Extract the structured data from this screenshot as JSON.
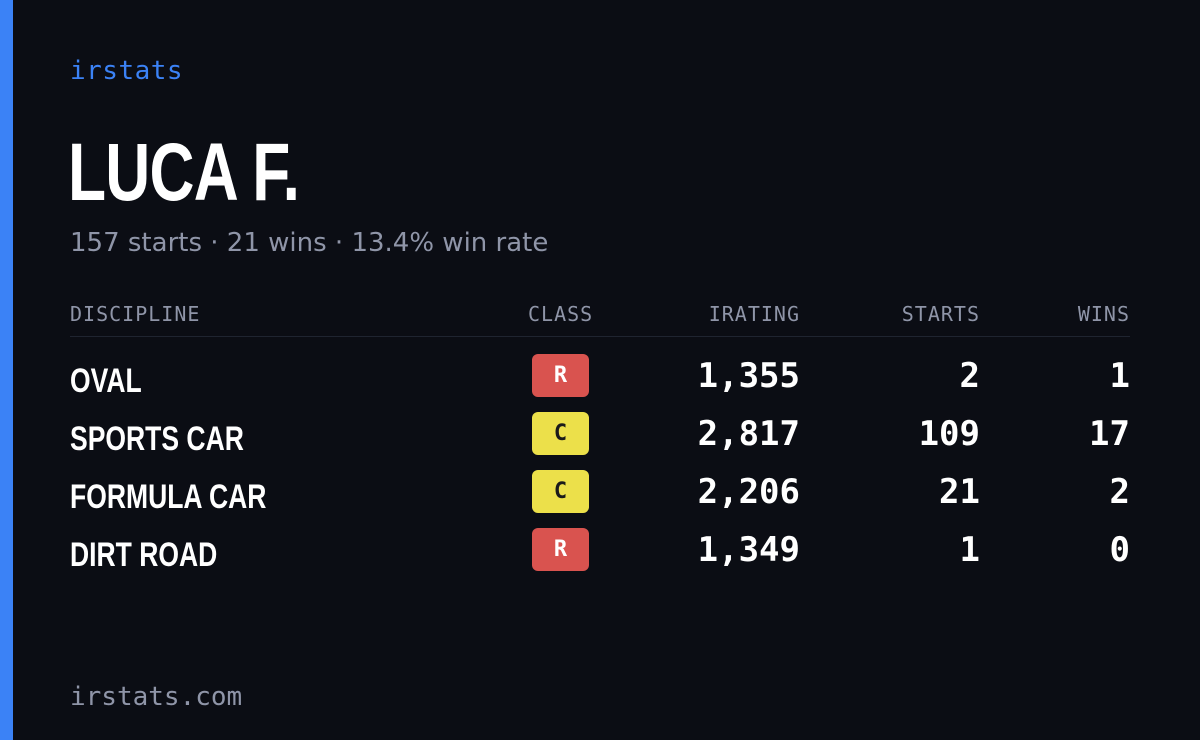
{
  "brand": "irstats",
  "driver": {
    "name": "LUCA F.",
    "summary": "157 starts · 21 wins · 13.4% win rate"
  },
  "table": {
    "headers": {
      "discipline": "DISCIPLINE",
      "class": "CLASS",
      "irating": "IRATING",
      "starts": "STARTS",
      "wins": "WINS"
    },
    "rows": [
      {
        "discipline": "OVAL",
        "class": "R",
        "irating": "1,355",
        "starts": "2",
        "wins": "1"
      },
      {
        "discipline": "SPORTS CAR",
        "class": "C",
        "irating": "2,817",
        "starts": "109",
        "wins": "17"
      },
      {
        "discipline": "FORMULA CAR",
        "class": "C",
        "irating": "2,206",
        "starts": "21",
        "wins": "2"
      },
      {
        "discipline": "DIRT ROAD",
        "class": "R",
        "irating": "1,349",
        "starts": "1",
        "wins": "0"
      }
    ]
  },
  "class_colors": {
    "R": {
      "bg": "#d9534f",
      "fg": "#ffffff"
    },
    "C": {
      "bg": "#ece04a",
      "fg": "#1a1a1a"
    }
  },
  "colors": {
    "accent": "#3b82f6",
    "background": "#0b0d14"
  },
  "footer": "irstats.com"
}
